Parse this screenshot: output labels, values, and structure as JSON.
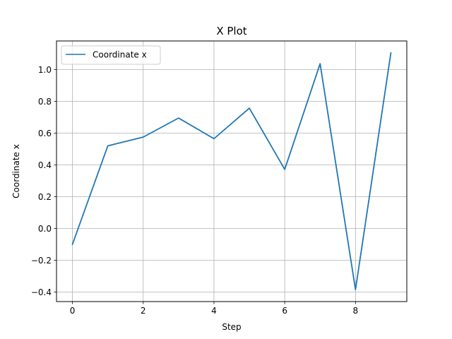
{
  "chart_data": {
    "type": "line",
    "title": "X Plot",
    "xlabel": "Step",
    "ylabel": "Coordinate x",
    "x": [
      0,
      1,
      2,
      3,
      4,
      5,
      6,
      7,
      8,
      9
    ],
    "series": [
      {
        "name": "Coordinate x",
        "color": "#1f77b4",
        "values": [
          -0.1,
          0.52,
          0.575,
          0.695,
          0.565,
          0.757,
          0.372,
          1.037,
          -0.385,
          1.105
        ]
      }
    ],
    "xlim": [
      -0.45,
      9.45
    ],
    "ylim": [
      -0.46,
      1.18
    ],
    "xticks": [
      0,
      2,
      4,
      6,
      8
    ],
    "xtick_labels": [
      "0",
      "2",
      "4",
      "6",
      "8"
    ],
    "yticks": [
      -0.4,
      -0.2,
      0.0,
      0.2,
      0.4,
      0.6,
      0.8,
      1.0
    ],
    "ytick_labels": [
      "−0.4",
      "−0.2",
      "0.0",
      "0.2",
      "0.4",
      "0.6",
      "0.8",
      "1.0"
    ],
    "grid": true,
    "legend": "upper-left"
  }
}
